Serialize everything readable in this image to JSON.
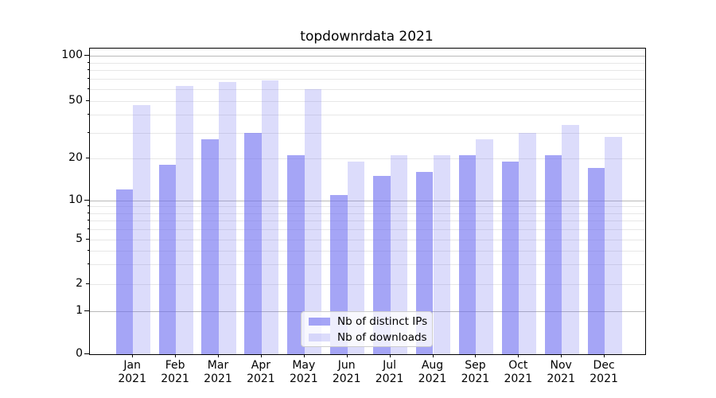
{
  "title": "topdownrdata 2021",
  "chart_data": {
    "type": "bar",
    "title": "topdownrdata 2021",
    "categories": [
      "Jan 2021",
      "Feb 2021",
      "Mar 2021",
      "Apr 2021",
      "May 2021",
      "Jun 2021",
      "Jul 2021",
      "Aug 2021",
      "Sep 2021",
      "Oct 2021",
      "Nov 2021",
      "Dec 2021"
    ],
    "series": [
      {
        "name": "Nb of distinct IPs",
        "values": [
          12,
          18,
          27,
          30,
          21,
          11,
          15,
          16,
          21,
          19,
          21,
          17
        ],
        "color": "rgba(110,110,240,0.62)"
      },
      {
        "name": "Nb of downloads",
        "values": [
          47,
          63,
          67,
          69,
          60,
          19,
          21,
          21,
          27,
          30,
          34,
          28
        ],
        "color": "rgba(110,110,240,0.245)"
      }
    ],
    "xlabel": "",
    "ylabel": "",
    "y_scale": "symlog",
    "y_tick_labels": [
      "0",
      "1",
      "2",
      "5",
      "10",
      "20",
      "50",
      "100"
    ],
    "y_ticks_labeled": [
      0,
      1,
      2,
      5,
      10,
      20,
      50,
      100
    ],
    "y_ticks_major": [
      0,
      1,
      10,
      100
    ],
    "y_ticks_minor_unlabeled": [
      3,
      4,
      6,
      7,
      8,
      9,
      30,
      40,
      60,
      70,
      80,
      90
    ],
    "ylim": [
      0,
      112
    ],
    "grid": "horizontal",
    "legend_position": "lower center"
  },
  "colors": {
    "bar_distinct_ips": "rgba(110,110,240,0.62)",
    "bar_downloads": "rgba(110,110,240,0.245)",
    "grid_major": "#b9b9b9",
    "grid_minor": "#e7e7e7",
    "spine": "#000000",
    "background": "#ffffff"
  }
}
